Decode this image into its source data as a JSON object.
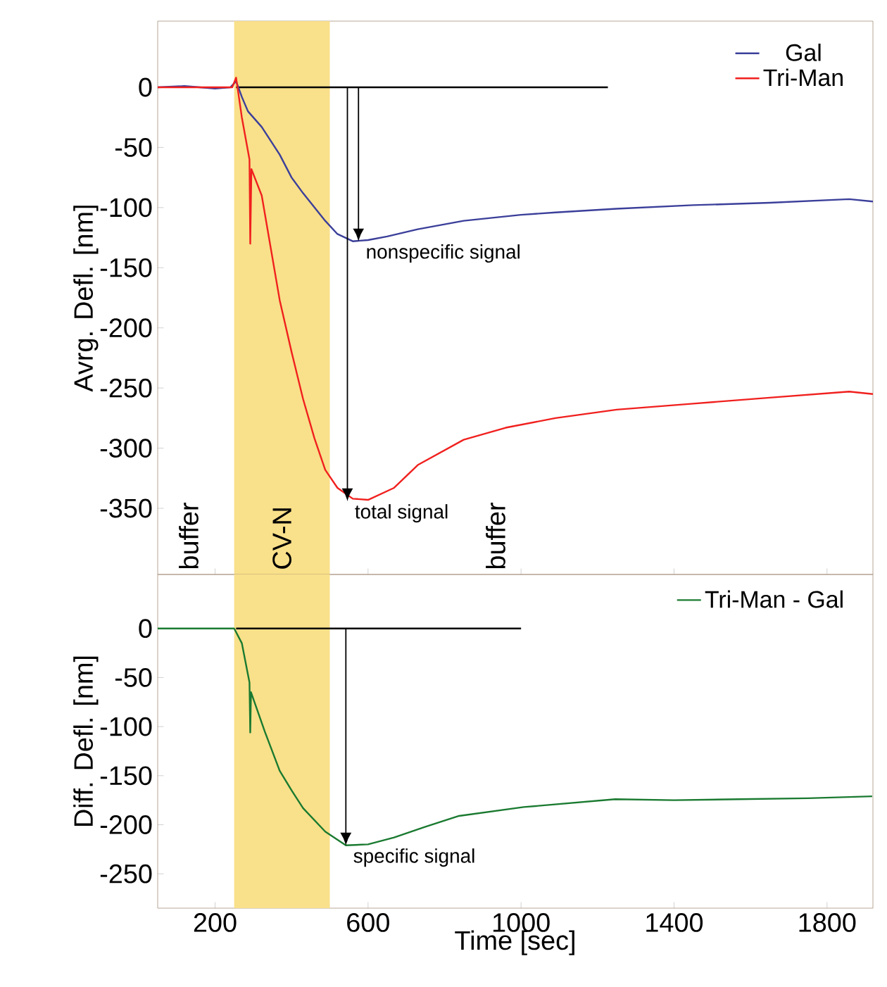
{
  "chart_data": [
    {
      "type": "line",
      "ylabel": "Avrg. Defl. [nm]",
      "xlim": [
        50,
        1920
      ],
      "ylim": [
        -405,
        55
      ],
      "xticks": [
        200,
        600,
        1000,
        1400,
        1800
      ],
      "yticks": [
        0,
        -50,
        -100,
        -150,
        -200,
        -250,
        -300,
        -350
      ],
      "tick_labels": "y",
      "legend": "top right",
      "series": [
        {
          "color": "#000000",
          "x": [
            255,
            1227
          ],
          "values": [
            0,
            0
          ]
        },
        {
          "name": "Gal",
          "color": "#3b3f9a",
          "x": [
            50,
            120,
            200,
            240,
            255,
            270,
            286,
            322,
            369,
            400,
            430,
            488,
            520,
            560,
            600,
            650,
            730,
            850,
            1000,
            1090,
            1250,
            1450,
            1650,
            1858,
            1920
          ],
          "values": [
            0,
            1,
            -1,
            0,
            5,
            -8,
            -20,
            -33,
            -56,
            -75,
            -88,
            -111,
            -122,
            -128,
            -127,
            -124,
            -118,
            -111,
            -106,
            -104,
            -101,
            -98,
            -96,
            -93,
            -95
          ]
        },
        {
          "name": "Tri-Man",
          "color": "#f0201e",
          "x": [
            50,
            200,
            245,
            255,
            270,
            290,
            292,
            295,
            322,
            369,
            400,
            430,
            460,
            488,
            520,
            560,
            600,
            668,
            730,
            850,
            960,
            1090,
            1250,
            1450,
            1650,
            1858,
            1920
          ],
          "values": [
            0,
            0,
            0,
            8,
            -25,
            -60,
            -130,
            -68,
            -90,
            -177,
            -220,
            -259,
            -292,
            -318,
            -333,
            -342,
            -343,
            -333,
            -314,
            -293,
            -283,
            -275,
            -268,
            -263,
            -258,
            -253,
            -255
          ]
        }
      ],
      "bands": [
        {
          "axis": "x",
          "from": 250,
          "to": 500,
          "label": "CV-N",
          "color": "#f9e08a"
        }
      ],
      "annotations": [
        "buffer",
        "buffer",
        {
          "text": "nonspecific signal",
          "x": 575,
          "y": -128
        },
        {
          "text": "total signal",
          "x": 546,
          "y": -344
        }
      ]
    },
    {
      "type": "line",
      "xlabel": "Time [sec]",
      "ylabel": "Diff. Defl. [nm]",
      "xlim": [
        50,
        1920
      ],
      "ylim": [
        -285,
        55
      ],
      "xticks": [
        200,
        600,
        1000,
        1400,
        1800
      ],
      "yticks": [
        0,
        -50,
        -100,
        -150,
        -200,
        -250
      ],
      "legend": "top right",
      "series": [
        {
          "color": "#000000",
          "x": [
            255,
            1000
          ],
          "values": [
            0,
            0
          ]
        },
        {
          "name": "Tri-Man - Gal",
          "color": "#1a7a30",
          "x": [
            50,
            200,
            250,
            270,
            285,
            290,
            292,
            294,
            330,
            369,
            400,
            430,
            488,
            542,
            600,
            668,
            750,
            838,
            1007,
            1246,
            1400,
            1570,
            1750,
            1918
          ],
          "values": [
            0,
            0,
            0,
            -15,
            -45,
            -55,
            -106,
            -65,
            -105,
            -145,
            -165,
            -183,
            -207,
            -221,
            -220,
            -213,
            -202,
            -191,
            -182,
            -174,
            -175,
            -174,
            -173,
            -171
          ]
        }
      ],
      "bands": [
        {
          "axis": "x",
          "from": 250,
          "to": 500,
          "color": "#f9e08a"
        }
      ],
      "annotations": [
        {
          "text": "specific signal",
          "x": 542,
          "y": -221
        }
      ]
    }
  ]
}
